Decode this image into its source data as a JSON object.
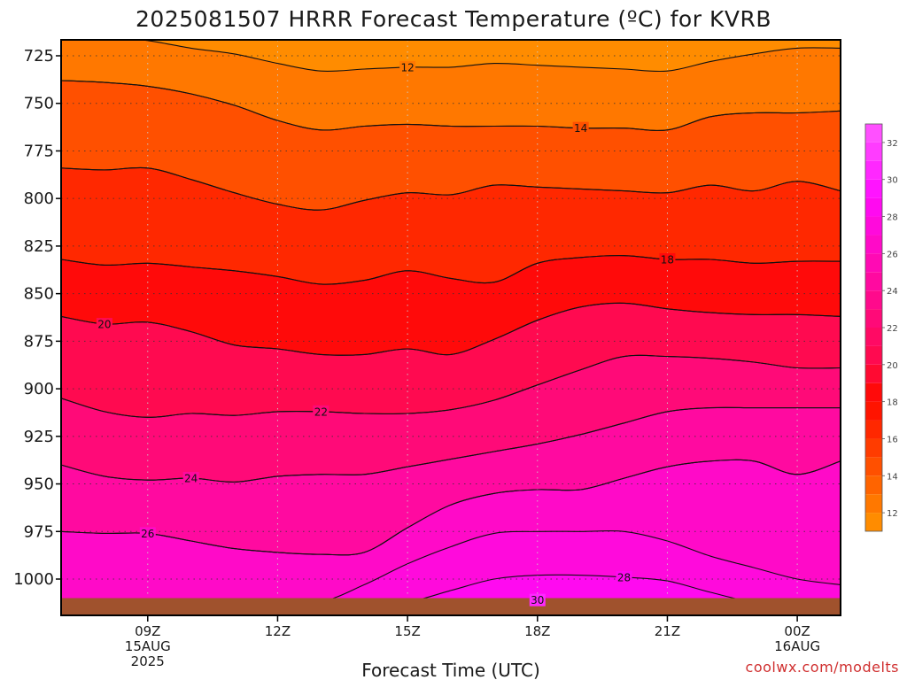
{
  "chart_data": {
    "type": "contour",
    "title": "2025081507 HRRR Forecast Temperature (ºC) for KVRB",
    "xlabel": "Forecast Time (UTC)",
    "credit": "coolwx.com/modelts",
    "x_range": [
      7,
      25
    ],
    "y_range": [
      1010,
      715
    ],
    "y_scale": "linear, pressure (hPa) increasing downward",
    "x_ticks": [
      {
        "x": 9,
        "lines": [
          "09Z",
          "15AUG",
          "2025"
        ]
      },
      {
        "x": 12,
        "lines": [
          "12Z"
        ]
      },
      {
        "x": 15,
        "lines": [
          "15Z"
        ]
      },
      {
        "x": 18,
        "lines": [
          "18Z"
        ]
      },
      {
        "x": 21,
        "lines": [
          "21Z"
        ]
      },
      {
        "x": 24,
        "lines": [
          "00Z",
          "16AUG"
        ]
      }
    ],
    "y_ticks": [
      725,
      750,
      775,
      800,
      825,
      850,
      875,
      900,
      925,
      950,
      975,
      1000
    ],
    "grid": "dotted",
    "colorbar": {
      "placement": "right",
      "ticks": [
        12,
        14,
        16,
        18,
        20,
        22,
        24,
        26,
        28,
        30,
        32
      ],
      "levels": [
        11,
        12,
        13,
        14,
        15,
        16,
        17,
        18,
        19,
        20,
        21,
        22,
        23,
        24,
        25,
        26,
        27,
        28,
        29,
        30,
        31,
        32,
        33
      ],
      "colors": [
        "#ff8c00",
        "#ff7800",
        "#ff6400",
        "#ff5000",
        "#ff3c00",
        "#ff2800",
        "#ff1400",
        "#ff0a0a",
        "#ff0a32",
        "#ff0a50",
        "#ff0a64",
        "#ff0a78",
        "#ff0a8c",
        "#ff0aa0",
        "#ff0ab4",
        "#ff0ac8",
        "#ff0adc",
        "#ff0af0",
        "#ff14ff",
        "#ff28ff",
        "#ff3cff",
        "#ff50ff"
      ]
    },
    "x": [
      7,
      8,
      9,
      10,
      11,
      12,
      13,
      14,
      15,
      16,
      17,
      18,
      19,
      20,
      21,
      22,
      23,
      24,
      25
    ],
    "contours": [
      {
        "level": 12,
        "label": "12",
        "label_x": 15,
        "p": [
          713,
          715,
          717,
          721,
          724,
          729,
          733,
          732,
          731,
          731,
          729,
          730,
          731,
          732,
          733,
          728,
          724,
          721,
          721
        ]
      },
      {
        "level": 13,
        "label": "",
        "p": [
          738,
          739,
          741,
          745,
          751,
          759,
          764,
          762,
          761,
          762,
          762,
          762,
          763,
          763,
          764,
          757,
          755,
          755,
          754
        ]
      },
      {
        "level": 14,
        "label": "14",
        "label_x": 19,
        "p": [
          738,
          739,
          741,
          745,
          751,
          759,
          764,
          762,
          761,
          762,
          762,
          762,
          763,
          763,
          764,
          757,
          755,
          755,
          754
        ]
      },
      {
        "level": 15,
        "label": "",
        "p": [
          784,
          785,
          784,
          790,
          797,
          803,
          806,
          801,
          797,
          798,
          793,
          794,
          795,
          796,
          797,
          793,
          796,
          791,
          796
        ]
      },
      {
        "level": 16,
        "label": "",
        "p": [
          784,
          785,
          784,
          790,
          797,
          803,
          806,
          801,
          797,
          798,
          793,
          794,
          795,
          796,
          797,
          793,
          796,
          791,
          796
        ]
      },
      {
        "level": 17,
        "label": "",
        "p": [
          832,
          835,
          834,
          836,
          838,
          841,
          845,
          843,
          838,
          842,
          844,
          834,
          831,
          830,
          832,
          832,
          834,
          833,
          833
        ]
      },
      {
        "level": 18,
        "label": "18",
        "label_x": 21,
        "p": [
          832,
          835,
          834,
          836,
          838,
          841,
          845,
          843,
          838,
          842,
          844,
          834,
          831,
          830,
          832,
          832,
          834,
          833,
          833
        ]
      },
      {
        "level": 19,
        "label": "",
        "p": [
          862,
          866,
          865,
          870,
          877,
          879,
          882,
          882,
          879,
          882,
          874,
          864,
          857,
          855,
          858,
          860,
          861,
          861,
          862
        ]
      },
      {
        "level": 20,
        "label": "20",
        "label_x": 8,
        "p": [
          862,
          866,
          865,
          870,
          877,
          879,
          882,
          882,
          879,
          882,
          874,
          864,
          857,
          855,
          858,
          860,
          861,
          861,
          862
        ]
      },
      {
        "level": 21,
        "label": "20",
        "label_x": 13,
        "p": [
          905,
          912,
          915,
          913,
          914,
          912,
          912,
          913,
          913,
          911,
          906,
          898,
          890,
          883,
          883,
          884,
          886,
          889,
          889
        ]
      },
      {
        "level": 22,
        "label": "22",
        "label_x": 13,
        "p": [
          905,
          912,
          915,
          913,
          914,
          912,
          912,
          913,
          913,
          911,
          906,
          898,
          890,
          883,
          883,
          884,
          886,
          889,
          889
        ]
      },
      {
        "level": 23,
        "label": "",
        "p": [
          940,
          946,
          948,
          947,
          949,
          946,
          945,
          945,
          941,
          937,
          933,
          929,
          924,
          918,
          912,
          910,
          910,
          910,
          910
        ]
      },
      {
        "level": 24,
        "label": "24",
        "label_x": 10,
        "p": [
          940,
          946,
          948,
          947,
          949,
          946,
          945,
          945,
          941,
          937,
          933,
          929,
          924,
          918,
          912,
          910,
          910,
          910,
          910
        ]
      },
      {
        "level": 25,
        "label": "",
        "p": [
          975,
          976,
          976,
          980,
          984,
          986,
          987,
          986,
          973,
          961,
          955,
          953,
          953,
          947,
          941,
          938,
          938,
          945,
          938
        ]
      },
      {
        "level": 26,
        "label": "26",
        "label_x": 9,
        "p": [
          975,
          976,
          976,
          980,
          984,
          986,
          987,
          986,
          973,
          961,
          955,
          953,
          953,
          947,
          941,
          938,
          938,
          945,
          938
        ]
      },
      {
        "level": 27,
        "label": "",
        "p": [
          1012,
          1012,
          1012,
          1012,
          1012,
          1012,
          1012,
          1003,
          992,
          983,
          976,
          975,
          975,
          975,
          980,
          988,
          994,
          1000,
          1003
        ]
      },
      {
        "level": 28,
        "label": "28",
        "label_x": 20,
        "p": [
          1012,
          1012,
          1012,
          1012,
          1012,
          1012,
          1012,
          1012,
          1012,
          1006,
          1000,
          998,
          998,
          999,
          1001,
          1007,
          1012,
          1012,
          1012
        ]
      },
      {
        "level": 29,
        "label": "",
        "p": [
          1012,
          1012,
          1012,
          1012,
          1012,
          1012,
          1012,
          1012,
          1012,
          1012,
          1012,
          1012,
          1012,
          1012,
          1012,
          1012,
          1012,
          1012,
          1012
        ]
      },
      {
        "level": 30,
        "label": "30",
        "label_x": 18,
        "p": [
          1012,
          1012,
          1012,
          1012,
          1012,
          1012,
          1012,
          1012,
          1012,
          1012,
          1012,
          1011,
          1011,
          1011,
          1011,
          1012,
          1012,
          1012,
          1012
        ]
      }
    ],
    "surface_p": 1010
  }
}
